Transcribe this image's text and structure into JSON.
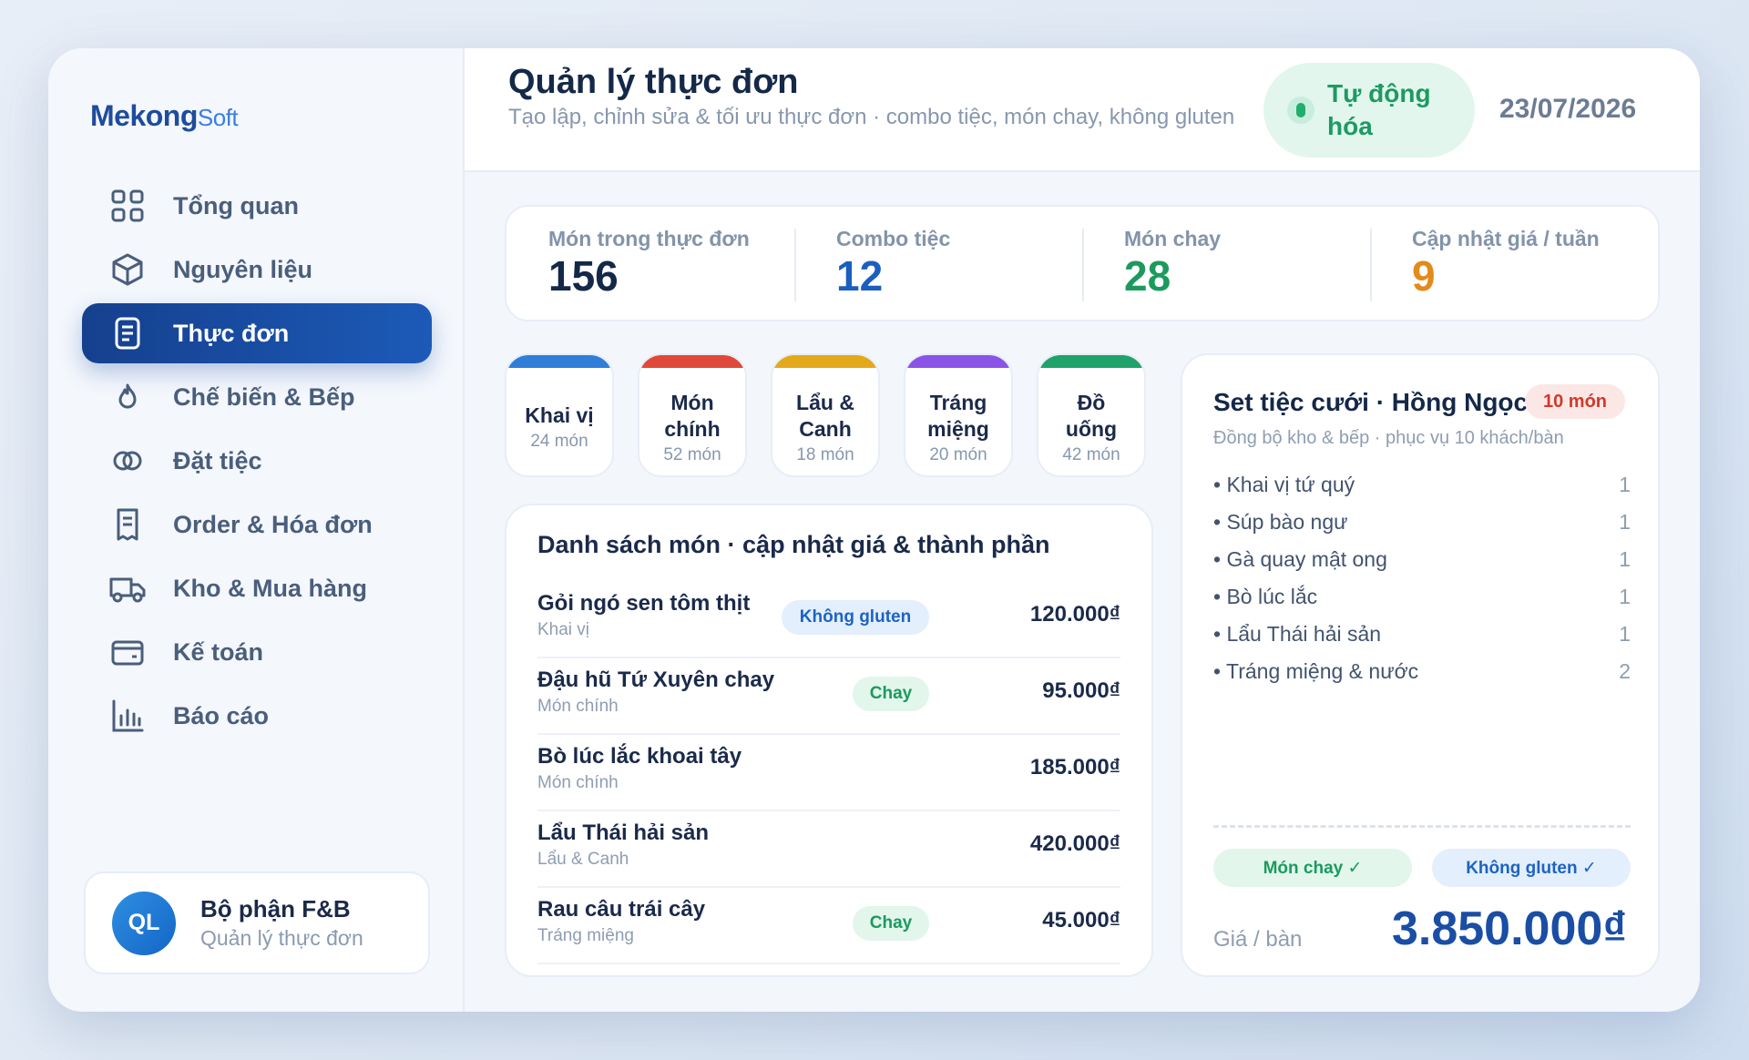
{
  "brand": {
    "name_main": "Mekong",
    "name_soft": "Soft"
  },
  "sidebar": {
    "items": [
      {
        "label": "Tổng quan",
        "icon": "grid-icon"
      },
      {
        "label": "Nguyên liệu",
        "icon": "box-icon"
      },
      {
        "label": "Thực đơn",
        "icon": "menu-icon",
        "active": true
      },
      {
        "label": "Chế biến & Bếp",
        "icon": "flame-icon"
      },
      {
        "label": "Đặt tiệc",
        "icon": "rings-icon"
      },
      {
        "label": "Order & Hóa đơn",
        "icon": "receipt-icon"
      },
      {
        "label": "Kho & Mua hàng",
        "icon": "truck-icon"
      },
      {
        "label": "Kế toán",
        "icon": "wallet-icon"
      },
      {
        "label": "Báo cáo",
        "icon": "chart-icon"
      }
    ],
    "user": {
      "initials": "QL",
      "name": "Bộ phận F&B",
      "role": "Quản lý thực đơn"
    }
  },
  "header": {
    "title": "Quản lý thực đơn",
    "subtitle": "Tạo lập, chỉnh sửa & tối ưu thực đơn · combo tiệc, món chay, không gluten",
    "auto_badge": "Tự động hóa",
    "date": "23/07/2026"
  },
  "stats": [
    {
      "label": "Món trong thực đơn",
      "value": "156",
      "color": "#142848"
    },
    {
      "label": "Combo tiệc",
      "value": "12",
      "color": "#1a5fbf"
    },
    {
      "label": "Món chay",
      "value": "28",
      "color": "#1c9a5e"
    },
    {
      "label": "Cập nhật giá / tuần",
      "value": "9",
      "color": "#e38a1c"
    }
  ],
  "categories": [
    {
      "name": "Khai vị",
      "count": "24 món",
      "color": "#2f7fd8"
    },
    {
      "name": "Món chính",
      "count": "52 món",
      "color": "#e0493a"
    },
    {
      "name": "Lẩu & Canh",
      "count": "18 món",
      "color": "#e4a81b"
    },
    {
      "name": "Tráng miệng",
      "count": "20 món",
      "color": "#8a55e6"
    },
    {
      "name": "Đồ uống",
      "count": "42 món",
      "color": "#1fa36a"
    }
  ],
  "dish_list": {
    "title": "Danh sách món · cập nhật giá & thành phần",
    "rows": [
      {
        "name": "Gỏi ngó sen tôm thịt",
        "category": "Khai vị",
        "tag": "Không gluten",
        "tag_type": "gluten",
        "price": "120.000₫"
      },
      {
        "name": "Đậu hũ Tứ Xuyên chay",
        "category": "Món chính",
        "tag": "Chay",
        "tag_type": "veg",
        "price": "95.000₫"
      },
      {
        "name": "Bò lúc lắc khoai tây",
        "category": "Món chính",
        "tag": "",
        "tag_type": "",
        "price": "185.000₫"
      },
      {
        "name": "Lẩu Thái hải sản",
        "category": "Lẩu & Canh",
        "tag": "",
        "tag_type": "",
        "price": "420.000₫"
      },
      {
        "name": "Rau câu trái cây",
        "category": "Tráng miệng",
        "tag": "Chay",
        "tag_type": "veg",
        "price": "45.000₫"
      }
    ]
  },
  "combo": {
    "title": "Set tiệc cưới · Hồng Ngọc",
    "count_badge": "10 món",
    "subtitle": "Đồng bộ kho & bếp · phục vụ 10 khách/bàn",
    "items": [
      {
        "name": "• Khai vị tứ quý",
        "qty": "1"
      },
      {
        "name": "• Súp bào ngư",
        "qty": "1"
      },
      {
        "name": "• Gà quay mật ong",
        "qty": "1"
      },
      {
        "name": "• Bò lúc lắc",
        "qty": "1"
      },
      {
        "name": "• Lẩu Thái hải sản",
        "qty": "1"
      },
      {
        "name": "• Tráng miệng & nước",
        "qty": "2"
      }
    ],
    "tag_veg": "Món chay ✓",
    "tag_gluten": "Không gluten ✓",
    "price_label": "Giá / bàn",
    "price_value": "3.850.000₫"
  }
}
